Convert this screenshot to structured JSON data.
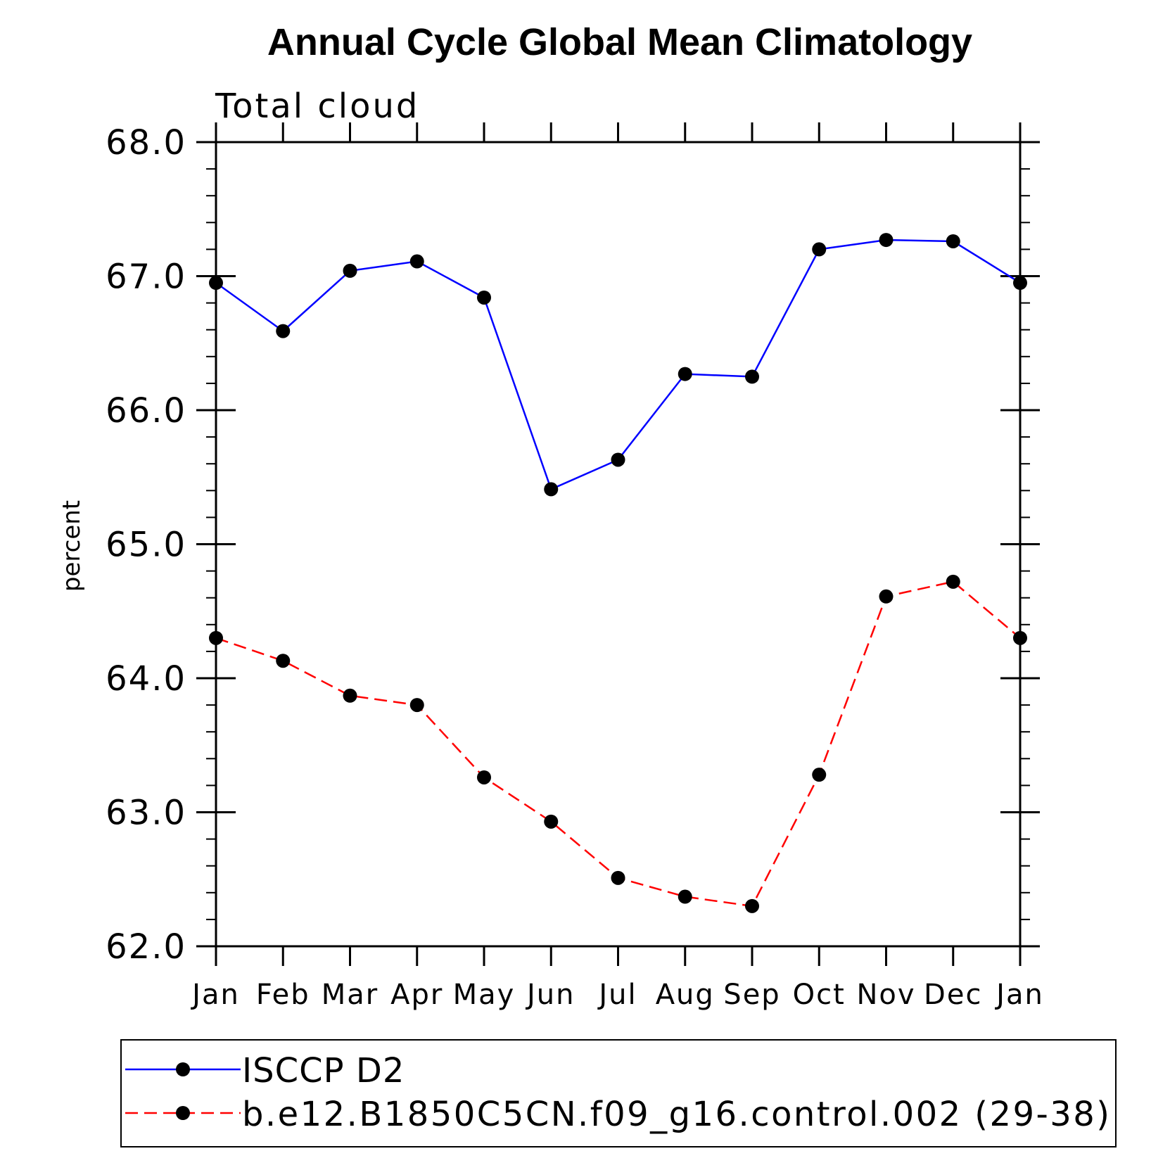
{
  "chart_data": {
    "type": "line",
    "title": "Annual Cycle Global Mean Climatology",
    "subtitle": "Total cloud",
    "xlabel": "",
    "ylabel": "percent",
    "categories": [
      "Jan",
      "Feb",
      "Mar",
      "Apr",
      "May",
      "Jun",
      "Jul",
      "Aug",
      "Sep",
      "Oct",
      "Nov",
      "Dec",
      "Jan"
    ],
    "ylim": [
      62.0,
      68.0
    ],
    "yticks": [
      "62.0",
      "63.0",
      "64.0",
      "65.0",
      "66.0",
      "67.0",
      "68.0"
    ],
    "grid": false,
    "legend_position": "bottom",
    "series": [
      {
        "name": "ISCCP D2",
        "color": "#0000ff",
        "style": "solid",
        "marker": "filled-circle",
        "values": [
          66.95,
          66.59,
          67.04,
          67.11,
          66.84,
          65.41,
          65.63,
          66.27,
          66.25,
          67.2,
          67.27,
          67.26,
          66.95
        ]
      },
      {
        "name": "b.e12.B1850C5CN.f09_g16.control.002 (29-38)",
        "color": "#ff0000",
        "style": "dashed",
        "marker": "filled-circle",
        "values": [
          64.3,
          64.13,
          63.87,
          63.8,
          63.26,
          62.93,
          62.51,
          62.37,
          62.3,
          63.28,
          64.61,
          64.72,
          64.3
        ]
      }
    ]
  }
}
